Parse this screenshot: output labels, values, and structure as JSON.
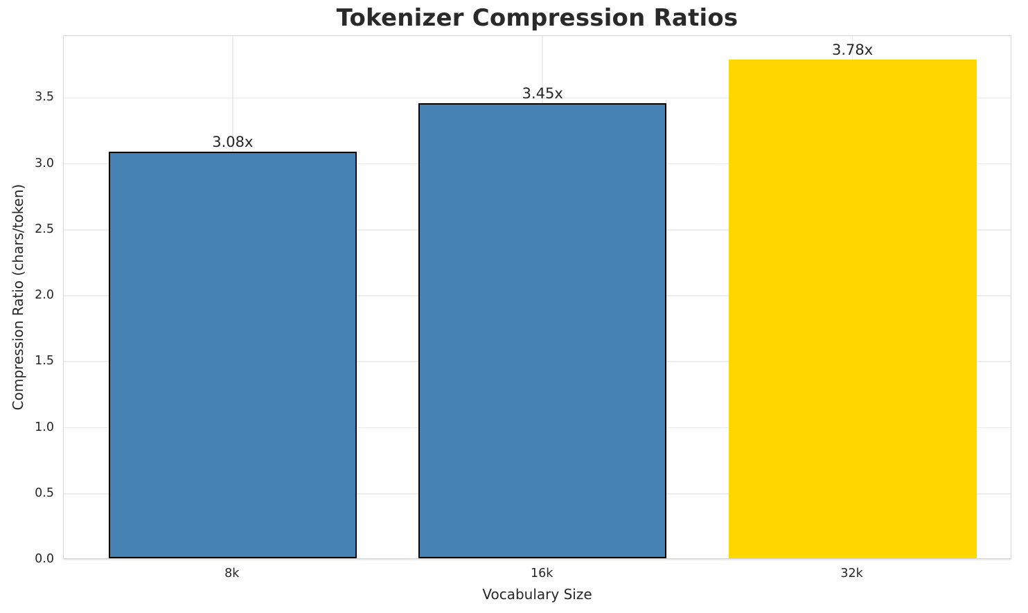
{
  "chart_data": {
    "type": "bar",
    "title": "Tokenizer Compression Ratios",
    "xlabel": "Vocabulary Size",
    "ylabel": "Compression Ratio (chars/token)",
    "categories": [
      "8k",
      "16k",
      "32k"
    ],
    "values": [
      3.08,
      3.45,
      3.78
    ],
    "bar_labels": [
      "3.08x",
      "3.45x",
      "3.78x"
    ],
    "bar_colors": [
      "#4682B4",
      "#4682B4",
      "#FFD700"
    ],
    "bar_edge_colors": [
      "#000000",
      "#000000",
      "none"
    ],
    "ylim": [
      0,
      3.969
    ],
    "yticks": [
      0.0,
      0.5,
      1.0,
      1.5,
      2.0,
      2.5,
      3.0,
      3.5
    ],
    "ytick_labels": [
      "0.0",
      "0.5",
      "1.0",
      "1.5",
      "2.0",
      "2.5",
      "3.0",
      "3.5"
    ],
    "grid": true,
    "grid_color": "#ececec",
    "spine_color": "#d4d4d4",
    "legend": "none",
    "bar_width_fraction": 0.8
  }
}
